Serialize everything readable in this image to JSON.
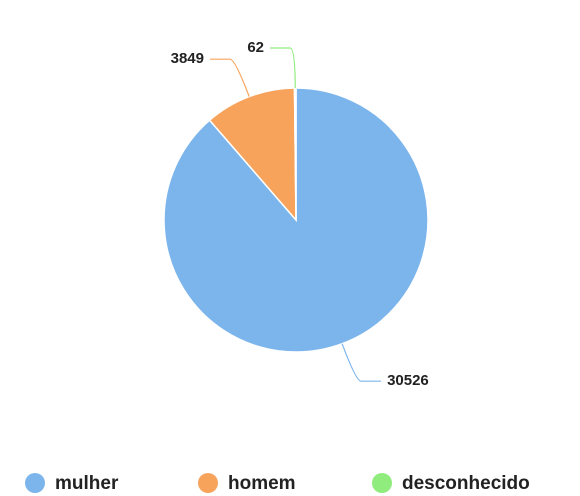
{
  "chart_data": {
    "type": "pie",
    "categories": [
      "mulher",
      "homem",
      "desconhecido"
    ],
    "values": [
      30526,
      3849,
      62
    ],
    "colors": [
      "#7cb5ec",
      "#f7a35c",
      "#90ed7d"
    ],
    "legend": "bottom"
  }
}
